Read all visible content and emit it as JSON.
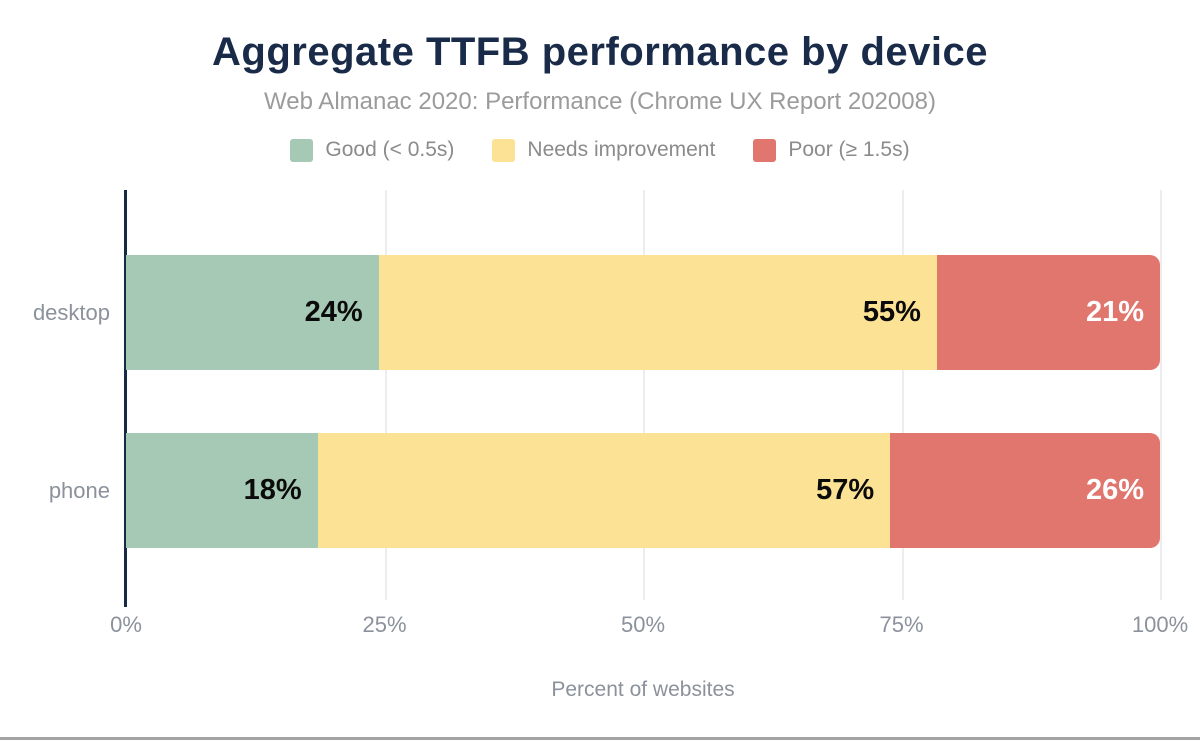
{
  "title": "Aggregate TTFB performance by device",
  "subtitle": "Web Almanac 2020: Performance (Chrome UX Report 202008)",
  "legend": [
    {
      "label": "Good (< 0.5s)",
      "color": "#a5c9b5"
    },
    {
      "label": "Needs improvement",
      "color": "#fce294"
    },
    {
      "label": "Poor (≥ 1.5s)",
      "color": "#e0766e"
    }
  ],
  "chart_data": {
    "type": "bar",
    "orientation": "horizontal",
    "stacked": true,
    "title": "Aggregate TTFB performance by device",
    "subtitle": "Web Almanac 2020: Performance (Chrome UX Report 202008)",
    "categories": [
      "desktop",
      "phone"
    ],
    "series": [
      {
        "name": "Good (< 0.5s)",
        "color": "#a5c9b5",
        "values": [
          24,
          18
        ]
      },
      {
        "name": "Needs improvement",
        "color": "#fce294",
        "values": [
          55,
          57
        ]
      },
      {
        "name": "Poor (≥ 1.5s)",
        "color": "#e0766e",
        "values": [
          21,
          26
        ]
      }
    ],
    "value_labels": [
      [
        "24%",
        "55%",
        "21%"
      ],
      [
        "18%",
        "57%",
        "26%"
      ]
    ],
    "x_ticks": [
      "0%",
      "25%",
      "50%",
      "75%",
      "100%"
    ],
    "x_tick_positions": [
      0,
      25,
      50,
      75,
      100
    ],
    "xlim": [
      0,
      100
    ],
    "xlabel": "Percent of websites",
    "grid": "vertical",
    "legend_position": "top"
  },
  "colors": {
    "title": "#1a2b49",
    "subtitle": "#9b9b9b",
    "axis_line": "#152a44",
    "axis_text": "#8b929c",
    "gridline": "#ededed",
    "good": "#a5c9b5",
    "needs_improvement": "#fce294",
    "poor": "#e0766e"
  }
}
